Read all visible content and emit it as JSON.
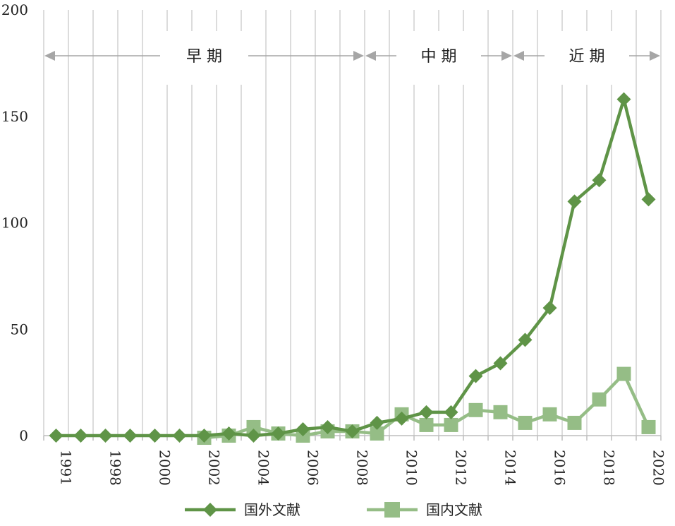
{
  "chart_data": {
    "type": "line",
    "categories": [
      "1991",
      "",
      "1998",
      "",
      "2000",
      "",
      "2002",
      "",
      "2004",
      "",
      "2006",
      "",
      "2008",
      "",
      "2010",
      "",
      "2012",
      "",
      "2014",
      "",
      "2016",
      "",
      "2018",
      "",
      "2020"
    ],
    "ylim": [
      0,
      200
    ],
    "yticks": [
      0,
      50,
      100,
      150,
      200
    ],
    "grid": "vertical",
    "legend_position": "bottom",
    "phases": [
      {
        "label": "早 期",
        "from": 0,
        "to": 13
      },
      {
        "label": "中 期",
        "from": 13,
        "to": 19
      },
      {
        "label": "近 期",
        "from": 19,
        "to": 25
      }
    ],
    "series": [
      {
        "name": "国外文献",
        "color": "#5f9447",
        "marker": "diamond",
        "values": [
          0,
          0,
          0,
          0,
          0,
          0,
          0,
          1,
          0,
          1,
          3,
          4,
          2,
          6,
          8,
          11,
          11,
          28,
          34,
          45,
          60,
          110,
          120,
          158,
          111
        ]
      },
      {
        "name": "国内文献",
        "color": "#95bd86",
        "marker": "square",
        "values": [
          null,
          null,
          null,
          null,
          null,
          null,
          -1,
          0,
          4,
          1,
          0,
          2,
          2,
          1,
          10,
          5,
          5,
          12,
          11,
          6,
          10,
          6,
          17,
          29,
          4
        ]
      }
    ]
  }
}
